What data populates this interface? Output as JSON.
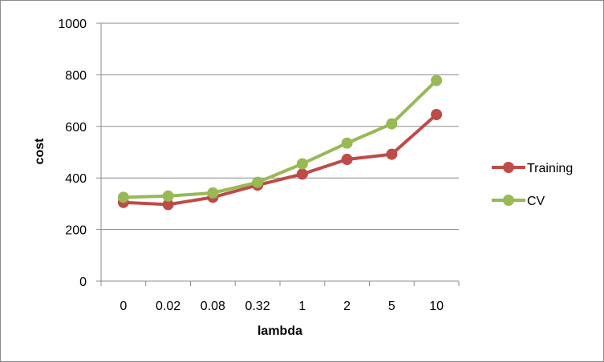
{
  "chart_data": {
    "type": "line",
    "categories": [
      "0",
      "0.02",
      "0.08",
      "0.32",
      "1",
      "2",
      "5",
      "10"
    ],
    "series": [
      {
        "name": "Training",
        "color": "#be4b48",
        "values": [
          305,
          297,
          325,
          372,
          415,
          472,
          492,
          646
        ]
      },
      {
        "name": "CV",
        "color": "#98b954",
        "values": [
          325,
          330,
          342,
          383,
          455,
          535,
          610,
          778
        ]
      }
    ],
    "xlabel": "lambda",
    "ylabel": "cost",
    "ylim": [
      0,
      1000
    ],
    "yticks": [
      "0",
      "200",
      "400",
      "600",
      "800",
      "1000"
    ],
    "grid": "horizontal",
    "legend_position": "right"
  }
}
